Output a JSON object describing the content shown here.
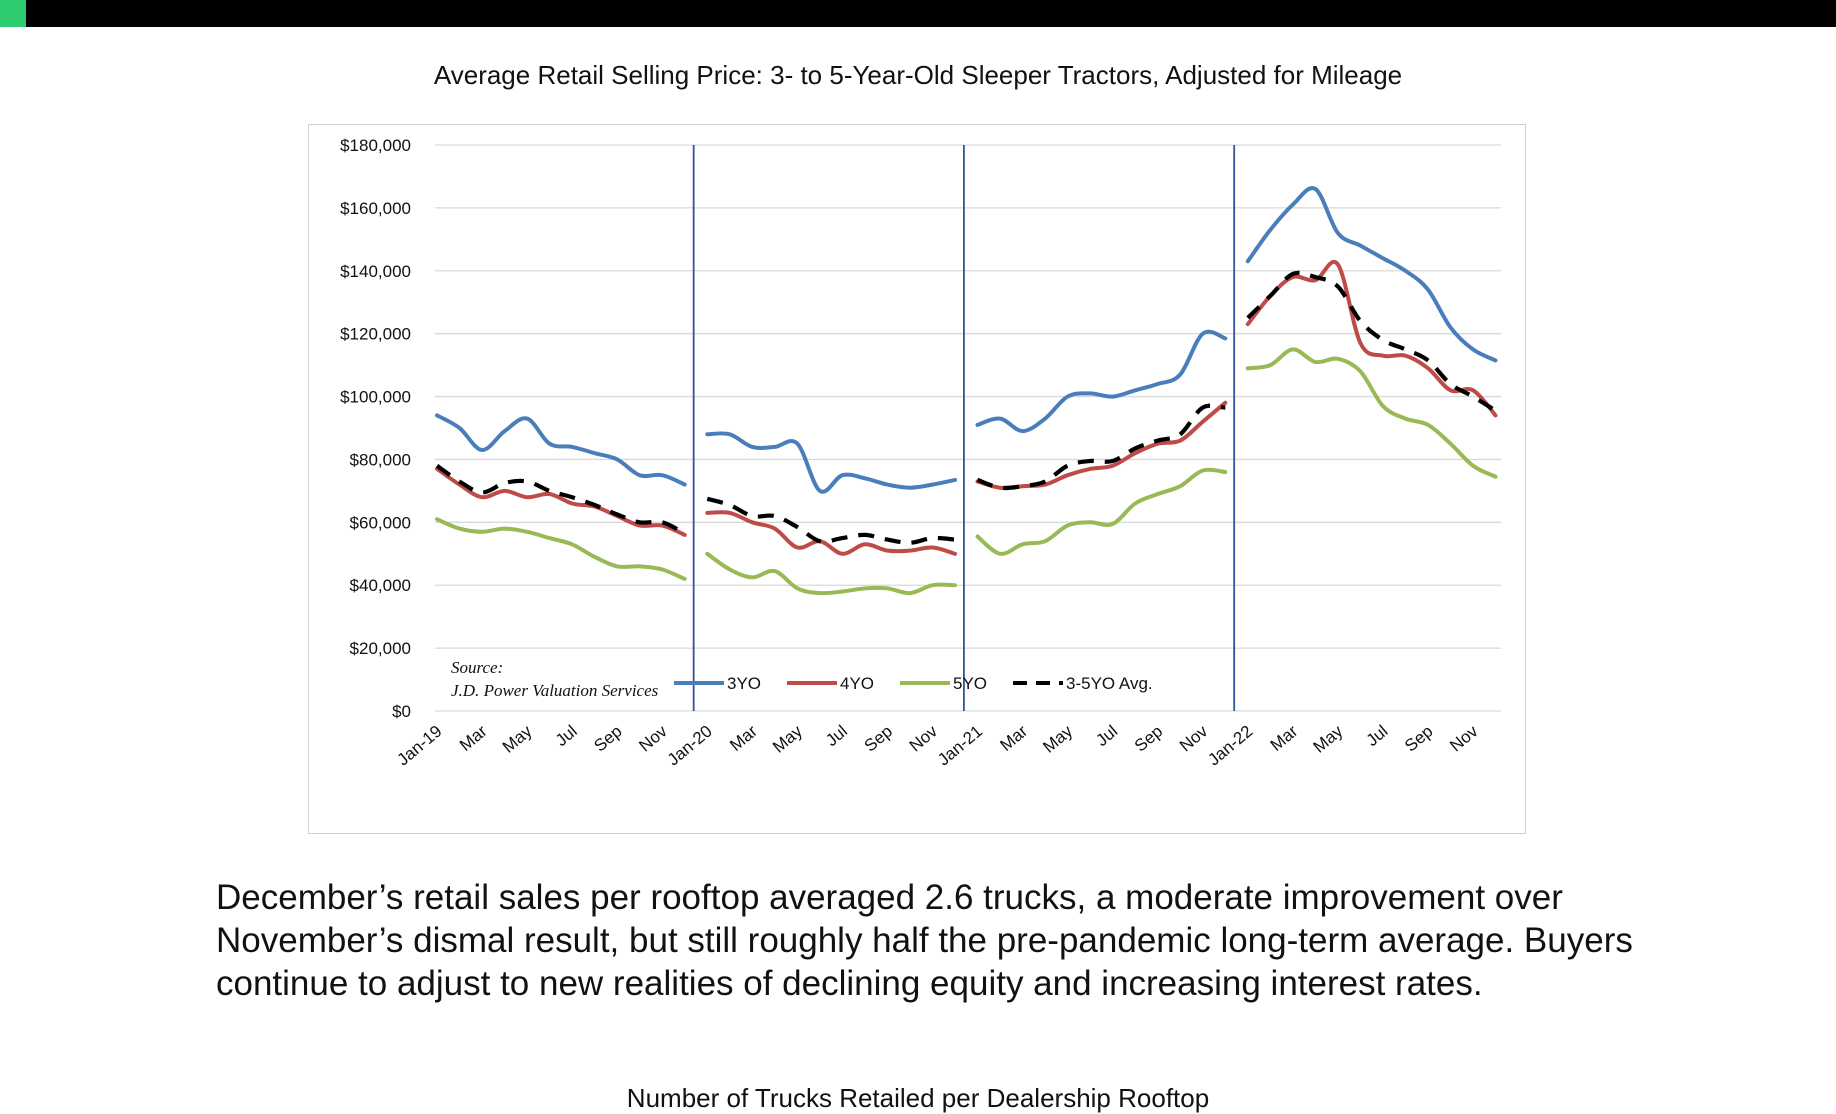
{
  "header": {
    "accent_color": "#2ecc71",
    "bar_color": "#000000"
  },
  "chart_title": "Average Retail Selling Price: 3- to 5-Year-Old Sleeper Tractors, Adjusted for Mileage",
  "body_text": "December’s retail sales per rooftop averaged 2.6 trucks, a moderate improvement over November’s dismal result, but still roughly half the pre-pandemic long-term average. Buyers continue to adjust to new realities of declining equity and increasing interest rates.",
  "sub_title": "Number of Trucks Retailed per Dealership Rooftop",
  "chart_data": {
    "type": "line",
    "title": "",
    "xlabel": "",
    "ylabel": "",
    "ylim": [
      0,
      180000
    ],
    "yticks": [
      "$0",
      "$20,000",
      "$40,000",
      "$60,000",
      "$80,000",
      "$100,000",
      "$120,000",
      "$140,000",
      "$160,000",
      "$180,000"
    ],
    "ytick_values": [
      0,
      20000,
      40000,
      60000,
      80000,
      100000,
      120000,
      140000,
      160000,
      180000
    ],
    "grid": true,
    "legend_position": "bottom",
    "year_starts": [
      "Jan-19",
      "Jan-20",
      "Jan-21",
      "Jan-22"
    ],
    "x": [
      "Jan-19",
      "Feb-19",
      "Mar-19",
      "Apr-19",
      "May-19",
      "Jun-19",
      "Jul-19",
      "Aug-19",
      "Sep-19",
      "Oct-19",
      "Nov-19",
      "Dec-19",
      "Jan-20",
      "Feb-20",
      "Mar-20",
      "Apr-20",
      "May-20",
      "Jun-20",
      "Jul-20",
      "Aug-20",
      "Sep-20",
      "Oct-20",
      "Nov-20",
      "Dec-20",
      "Jan-21",
      "Feb-21",
      "Mar-21",
      "Apr-21",
      "May-21",
      "Jun-21",
      "Jul-21",
      "Aug-21",
      "Sep-21",
      "Oct-21",
      "Nov-21",
      "Dec-21",
      "Jan-22",
      "Feb-22",
      "Mar-22",
      "Apr-22",
      "May-22",
      "Jun-22",
      "Jul-22",
      "Aug-22",
      "Sep-22",
      "Oct-22",
      "Nov-22",
      "Dec-22"
    ],
    "xtick_labels": [
      "Jan-19",
      "",
      "Mar",
      "",
      "May",
      "",
      "Jul",
      "",
      "Sep",
      "",
      "Nov",
      "",
      "Jan-20",
      "",
      "Mar",
      "",
      "May",
      "",
      "Jul",
      "",
      "Sep",
      "",
      "Nov",
      "",
      "Jan-21",
      "",
      "Mar",
      "",
      "May",
      "",
      "Jul",
      "",
      "Sep",
      "",
      "Nov",
      "",
      "Jan-22",
      "",
      "Mar",
      "",
      "May",
      "",
      "Jul",
      "",
      "Sep",
      "",
      "Nov",
      ""
    ],
    "series": [
      {
        "name": "3YO",
        "color": "#4a7ebb",
        "dashed": false,
        "values": [
          94000,
          90000,
          83000,
          89000,
          93000,
          85000,
          84000,
          82000,
          80000,
          75000,
          75000,
          72000,
          88000,
          88000,
          84000,
          84000,
          85000,
          70000,
          75000,
          74000,
          72000,
          71000,
          72000,
          73500,
          91000,
          93000,
          89000,
          93000,
          100000,
          101000,
          100000,
          102000,
          104000,
          107000,
          120000,
          118500,
          143000,
          153000,
          161000,
          166000,
          152000,
          148000,
          144000,
          140000,
          134000,
          122000,
          115000,
          111500
        ]
      },
      {
        "name": "4YO",
        "color": "#be4b48",
        "dashed": false,
        "values": [
          77000,
          72000,
          68000,
          70000,
          68000,
          69000,
          66000,
          65000,
          62000,
          59000,
          59000,
          56000,
          63000,
          63000,
          60000,
          58000,
          52000,
          54000,
          50000,
          53000,
          51000,
          51000,
          52000,
          50000,
          73000,
          71000,
          71500,
          72000,
          75000,
          77000,
          78000,
          82000,
          85000,
          86000,
          92000,
          98000,
          123000,
          132000,
          138000,
          137000,
          142000,
          117000,
          113000,
          113000,
          109000,
          102000,
          102000,
          94000
        ]
      },
      {
        "name": "5YO",
        "color": "#98b954",
        "dashed": false,
        "values": [
          61000,
          58000,
          57000,
          58000,
          57000,
          55000,
          53000,
          49000,
          46000,
          46000,
          45000,
          42000,
          50000,
          45000,
          42500,
          44500,
          39000,
          37500,
          38000,
          39000,
          39000,
          37500,
          40000,
          40000,
          55500,
          50000,
          53000,
          54000,
          59000,
          60000,
          59500,
          66000,
          69000,
          71500,
          76500,
          76000,
          109000,
          110000,
          115000,
          111000,
          112000,
          108000,
          97000,
          93000,
          91000,
          85000,
          78000,
          74500
        ]
      },
      {
        "name": "3-5YO Avg.",
        "color": "#000000",
        "dashed": true,
        "values": [
          78000,
          73000,
          69500,
          72500,
          73000,
          70000,
          68000,
          65500,
          62500,
          60000,
          60000,
          56500,
          67500,
          65500,
          62000,
          62000,
          58500,
          54000,
          55000,
          56000,
          54500,
          53500,
          55000,
          54500,
          73500,
          71000,
          71500,
          73000,
          78000,
          79500,
          79500,
          83500,
          86000,
          88000,
          96500,
          96500,
          125000,
          132000,
          139000,
          138000,
          135000,
          124000,
          118000,
          115000,
          111500,
          104000,
          100000,
          95500
        ]
      }
    ],
    "annotation": [
      "Source:",
      "J.D. Power Valuation Services"
    ]
  }
}
